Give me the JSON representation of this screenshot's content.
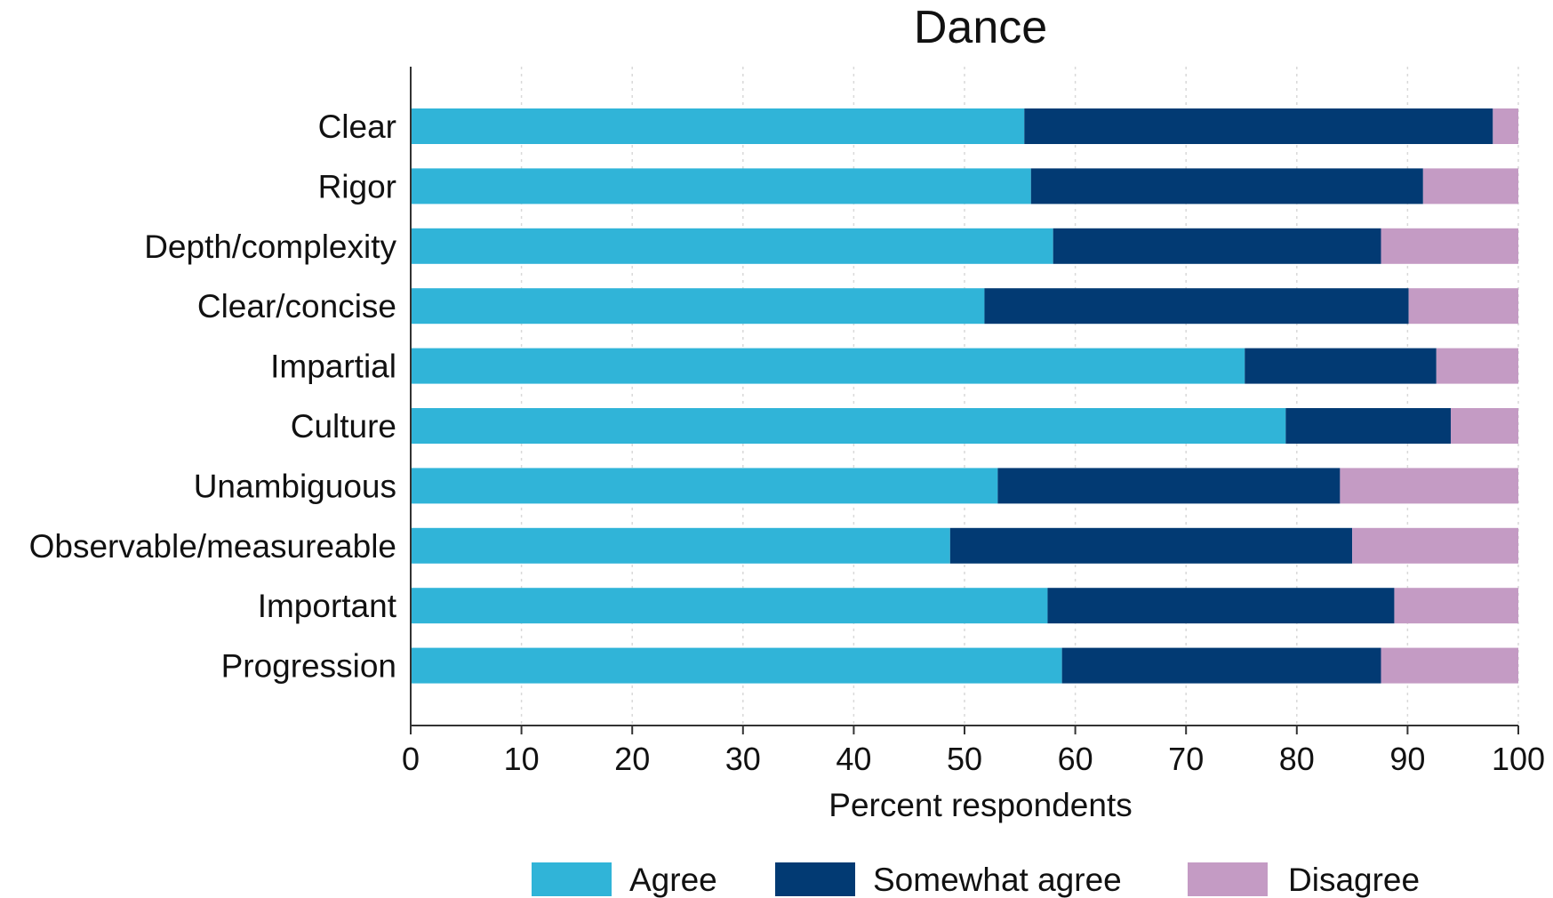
{
  "chart_data": {
    "type": "bar",
    "orientation": "horizontal",
    "stacked": true,
    "title": "Dance",
    "xlabel": "Percent respondents",
    "ylabel": "",
    "xlim": [
      0,
      100
    ],
    "xticks": [
      0,
      10,
      20,
      30,
      40,
      50,
      60,
      70,
      80,
      90,
      100
    ],
    "grid": true,
    "legend_position": "bottom",
    "categories": [
      "Clear",
      "Rigor",
      "Depth/complexity",
      "Clear/concise",
      "Impartial",
      "Culture",
      "Unambiguous",
      "Observable/measureable",
      "Important",
      "Progression"
    ],
    "series": [
      {
        "name": "Agree",
        "color": "#30b4d8",
        "values": [
          55.4,
          56.0,
          58.0,
          51.8,
          75.3,
          79.0,
          53.0,
          48.7,
          57.5,
          58.8
        ]
      },
      {
        "name": "Somewhat agree",
        "color": "#023a73",
        "values": [
          42.3,
          35.4,
          29.6,
          38.3,
          17.3,
          14.9,
          30.9,
          36.3,
          31.3,
          28.8
        ]
      },
      {
        "name": "Disagree",
        "color": "#c49bc4",
        "values": [
          2.3,
          8.6,
          12.4,
          9.9,
          7.4,
          6.1,
          16.1,
          15.0,
          11.2,
          12.4
        ]
      }
    ]
  }
}
